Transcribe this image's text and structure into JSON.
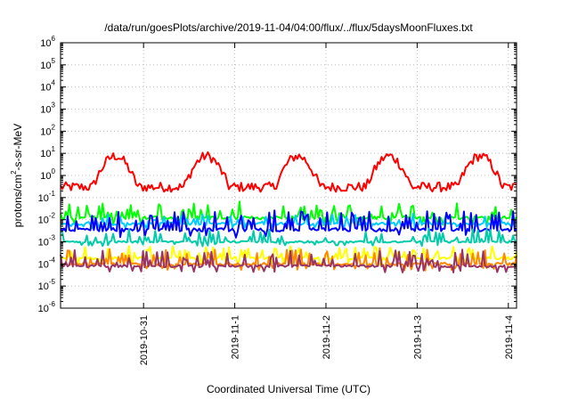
{
  "chart_data": {
    "type": "line",
    "title": "/data/run/goesPlots/archive/2019-11-04/04:00/flux/../flux/5daysMoonFluxes.txt",
    "xlabel": "Coordinated Universal Time (UTC)",
    "ylabel": {
      "base": "protons/cm",
      "exp": "2",
      "rest": "-s-sr-MeV"
    },
    "y_scale": "log",
    "ylim": [
      1e-06,
      1000000.0
    ],
    "y_ticks": [
      {
        "base": "10",
        "exp": "6",
        "value": 1000000.0
      },
      {
        "base": "10",
        "exp": "5",
        "value": 100000.0
      },
      {
        "base": "10",
        "exp": "4",
        "value": 10000.0
      },
      {
        "base": "10",
        "exp": "3",
        "value": 1000.0
      },
      {
        "base": "10",
        "exp": "2",
        "value": 100.0
      },
      {
        "base": "10",
        "exp": "1",
        "value": 10.0
      },
      {
        "base": "10",
        "exp": "0",
        "value": 1.0
      },
      {
        "base": "10",
        "exp": "-1",
        "value": 0.1
      },
      {
        "base": "10",
        "exp": "-2",
        "value": 0.01
      },
      {
        "base": "10",
        "exp": "-3",
        "value": 0.001
      },
      {
        "base": "10",
        "exp": "-4",
        "value": 0.0001
      },
      {
        "base": "10",
        "exp": "-5",
        "value": 1e-05
      },
      {
        "base": "10",
        "exp": "-6",
        "value": 1e-06
      }
    ],
    "xlim": [
      0,
      5
    ],
    "x_ticks": [
      {
        "label": "2019-10-31",
        "value": 0.91
      },
      {
        "label": "2019-11-1",
        "value": 1.91
      },
      {
        "label": "2019-11-2",
        "value": 2.91
      },
      {
        "label": "2019-11-3",
        "value": 3.91
      },
      {
        "label": "2019-11-4",
        "value": 4.91
      }
    ],
    "grid": "dotted",
    "legend": "none",
    "series": [
      {
        "color": "#ff0000",
        "width": 2,
        "kind": "smooth",
        "base": 0.3,
        "amp": 1.4,
        "period": 1.0,
        "phase": 0.35,
        "noise": 0.22,
        "jit": 0.1,
        "spikes": 0.0
      },
      {
        "color": "#00ff00",
        "width": 2,
        "kind": "spiky",
        "base": 0.012,
        "amp": 0.0,
        "period": 1.0,
        "phase": 0.0,
        "noise": 0.08,
        "jit": 0.1,
        "spikes": 0.5
      },
      {
        "color": "#00ccff",
        "width": 2,
        "kind": "spiky",
        "base": 0.0065,
        "amp": 0.0,
        "period": 1.0,
        "phase": 0.0,
        "noise": 0.06,
        "jit": 0.05,
        "spikes": 0.3
      },
      {
        "color": "#0000ff",
        "width": 2,
        "kind": "spiky",
        "base": 0.0035,
        "amp": 0.0,
        "period": 1.0,
        "phase": 0.0,
        "noise": 0.08,
        "jit": 0.1,
        "spikes": 0.6
      },
      {
        "color": "#00ccaa",
        "width": 2,
        "kind": "spiky",
        "base": 0.001,
        "amp": 0.0,
        "period": 1.0,
        "phase": 0.0,
        "noise": 0.05,
        "jit": 0.05,
        "spikes": 0.4
      },
      {
        "color": "#ffff00",
        "width": 2,
        "kind": "spiky",
        "base": 0.00018,
        "amp": 0.0,
        "period": 1.0,
        "phase": 0.0,
        "noise": 0.06,
        "jit": 0.08,
        "spikes": 0.4
      },
      {
        "color": "#ff8800",
        "width": 2,
        "kind": "spiky",
        "base": 0.0001,
        "amp": 0.0,
        "period": 1.0,
        "phase": 0.0,
        "noise": 0.06,
        "jit": 0.08,
        "spikes": 0.5
      },
      {
        "color": "#993366",
        "width": 2,
        "kind": "spiky",
        "base": 8e-05,
        "amp": 0.0,
        "period": 1.0,
        "phase": 0.0,
        "noise": 0.05,
        "jit": 0.08,
        "spikes": 0.5
      }
    ]
  }
}
